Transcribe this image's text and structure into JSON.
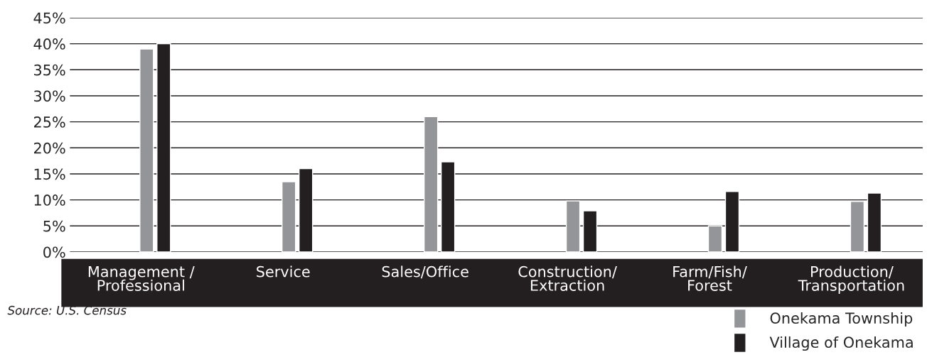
{
  "chart_data": {
    "type": "bar",
    "categories": [
      "Management /\nProfessional",
      "Service",
      "Sales/Office",
      "Construction/\nExtraction",
      "Farm/Fish/\nForest",
      "Production/\nTransportation"
    ],
    "series": [
      {
        "name": "Onekama Township",
        "color": "#939598",
        "values": [
          39.0,
          13.5,
          26.0,
          9.8,
          5.0,
          9.7
        ]
      },
      {
        "name": "Village of Onekama",
        "color": "#231f20",
        "values": [
          40.0,
          16.0,
          17.3,
          7.9,
          11.6,
          11.3
        ]
      }
    ],
    "ylim": [
      0,
      45
    ],
    "yticks": [
      {
        "value": 0,
        "label": "0%"
      },
      {
        "value": 5,
        "label": "5%"
      },
      {
        "value": 10,
        "label": "10%"
      },
      {
        "value": 15,
        "label": "15%"
      },
      {
        "value": 20,
        "label": "20%"
      },
      {
        "value": 25,
        "label": "25%"
      },
      {
        "value": 30,
        "label": "30%"
      },
      {
        "value": 35,
        "label": "35%"
      },
      {
        "value": 40,
        "label": "40%"
      },
      {
        "value": 45,
        "label": "45%"
      }
    ],
    "grid": "y",
    "legend": "bottom right",
    "annotations": [
      "Source: U.S. Census"
    ]
  }
}
